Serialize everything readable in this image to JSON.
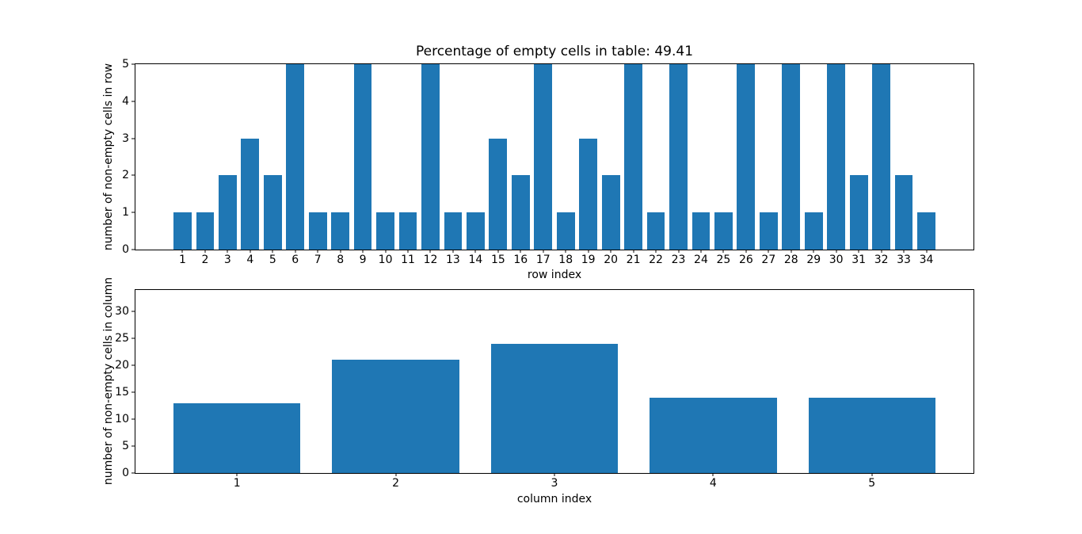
{
  "figure": {
    "background": "#ffffff",
    "text_color": "#000000"
  },
  "chart_data": [
    {
      "type": "bar",
      "title": "Percentage of empty cells in table: 49.41",
      "xlabel": "row index",
      "ylabel": "number of non-empty cells in row",
      "categories": [
        1,
        2,
        3,
        4,
        5,
        6,
        7,
        8,
        9,
        10,
        11,
        12,
        13,
        14,
        15,
        16,
        17,
        18,
        19,
        20,
        21,
        22,
        23,
        24,
        25,
        26,
        27,
        28,
        29,
        30,
        31,
        32,
        33,
        34
      ],
      "values": [
        1,
        1,
        2,
        3,
        2,
        5,
        1,
        1,
        5,
        1,
        1,
        5,
        1,
        1,
        3,
        2,
        5,
        1,
        3,
        2,
        5,
        1,
        5,
        1,
        1,
        5,
        1,
        5,
        1,
        5,
        2,
        5,
        2,
        1
      ],
      "bar_color": "#1f77b4",
      "bar_width": 0.8,
      "xlim": [
        -1.09,
        36.09
      ],
      "ylim": [
        0,
        5
      ],
      "yticks": [
        0,
        1,
        2,
        3,
        4,
        5
      ],
      "grid": false,
      "legend": null
    },
    {
      "type": "bar",
      "title": "",
      "xlabel": "column index",
      "ylabel": "number of non-empty cells in column",
      "categories": [
        1,
        2,
        3,
        4,
        5
      ],
      "values": [
        13,
        21,
        24,
        14,
        14
      ],
      "bar_color": "#1f77b4",
      "bar_width": 0.8,
      "xlim": [
        0.36,
        5.64
      ],
      "ylim": [
        0,
        34
      ],
      "yticks": [
        0,
        5,
        10,
        15,
        20,
        25,
        30
      ],
      "grid": false,
      "legend": null
    }
  ]
}
